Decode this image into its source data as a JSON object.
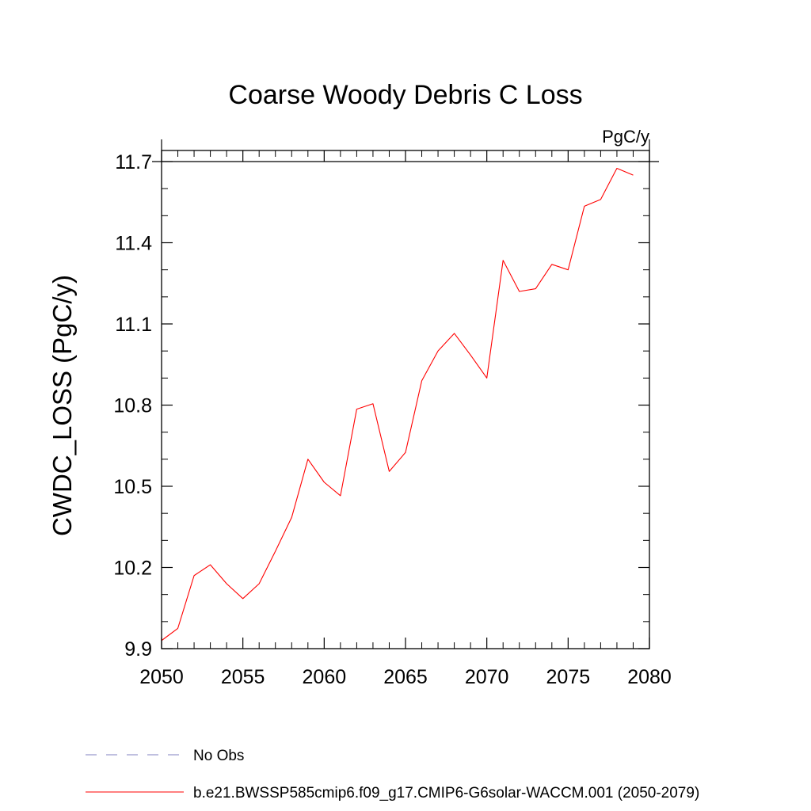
{
  "chart_data": {
    "type": "line",
    "title": "Coarse Woody Debris C Loss",
    "units_label": "PgC/y",
    "ylabel": "CWDC_LOSS  (PgC/y)",
    "xlabel": "",
    "xlim": [
      2050,
      2080
    ],
    "ylim": [
      9.9,
      11.75
    ],
    "x_ticks": [
      2050,
      2055,
      2060,
      2065,
      2070,
      2075,
      2080
    ],
    "x_tick_labels": [
      "2050",
      "2055",
      "2060",
      "2065",
      "2070",
      "2075",
      "2080"
    ],
    "y_ticks": [
      9.9,
      10.2,
      10.5,
      10.8,
      11.1,
      11.4,
      11.7
    ],
    "y_tick_labels": [
      "9.9",
      "10.2",
      "10.5",
      "10.8",
      "11.1",
      "11.4",
      "11.7"
    ],
    "y_minor_step": 0.1,
    "x_minor_step": 1,
    "grid": false,
    "legend_position": "bottom",
    "series": [
      {
        "name": "b.e21.BWSSP585cmip6.f09_g17.CMIP6-G6solar-WACCM.001 (2050-2079)",
        "color": "#ff0000",
        "style": "solid",
        "x": [
          2050,
          2051,
          2052,
          2053,
          2054,
          2055,
          2056,
          2057,
          2058,
          2059,
          2060,
          2061,
          2062,
          2063,
          2064,
          2065,
          2066,
          2067,
          2068,
          2069,
          2070,
          2071,
          2072,
          2073,
          2074,
          2075,
          2076,
          2077,
          2078,
          2079
        ],
        "values": [
          9.93,
          9.975,
          10.17,
          10.21,
          10.14,
          10.085,
          10.14,
          10.26,
          10.385,
          10.6,
          10.515,
          10.465,
          10.785,
          10.805,
          10.555,
          10.625,
          10.89,
          11.0,
          11.065,
          10.985,
          10.9,
          11.335,
          11.22,
          11.23,
          11.32,
          11.3,
          11.535,
          11.56,
          11.675,
          11.65
        ]
      }
    ],
    "legend": [
      {
        "label": "No Obs",
        "color": "#8080c0",
        "style": "dashed"
      },
      {
        "label": "b.e21.BWSSP585cmip6.f09_g17.CMIP6-G6solar-WACCM.001 (2050-2079)",
        "color": "#ff0000",
        "style": "solid"
      }
    ]
  }
}
